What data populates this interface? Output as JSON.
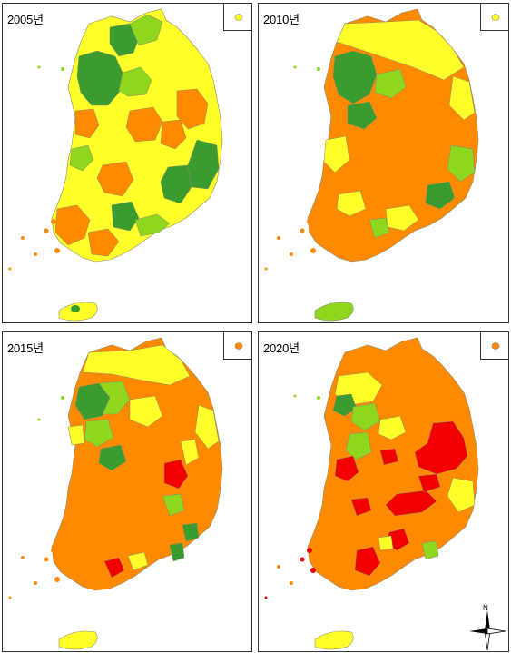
{
  "colors": {
    "dark_green": "#3a9c2e",
    "light_green": "#8fd61f",
    "yellow": "#ffff2a",
    "orange": "#ff8a00",
    "red": "#f20000",
    "border": "#8a8a6a"
  },
  "panels": [
    {
      "year_label": "2005년",
      "inset_color": "#ffff2a",
      "jeju_color": "#ffff2a"
    },
    {
      "year_label": "2010년",
      "inset_color": "#ffff2a",
      "jeju_color": "#8fd61f"
    },
    {
      "year_label": "2015년",
      "inset_color": "#ff8a00",
      "jeju_color": "#ffff2a"
    },
    {
      "year_label": "2020년",
      "inset_color": "#ff8a00",
      "jeju_color": "#ffff2a"
    }
  ],
  "compass": {
    "label": "N",
    "icon": "north-arrow-icon"
  }
}
